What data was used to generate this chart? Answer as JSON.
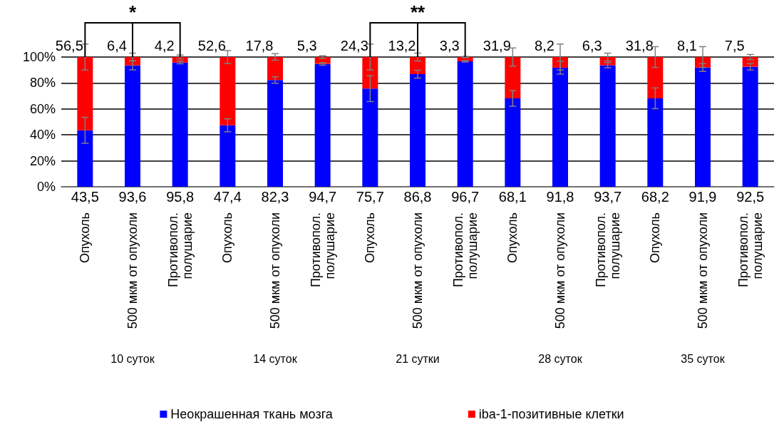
{
  "chart_data": {
    "type": "bar",
    "stacked": true,
    "categories": [
      "Опухоль",
      "500 мкм от опухоли",
      "Противопол. полушарие",
      "Опухоль",
      "500 мкм от опухоли",
      "Противопол. полушарие",
      "Опухоль",
      "500 мкм от опухоли",
      "Противопол. полушарие",
      "Опухоль",
      "500 мкм от опухоли",
      "Противопол. полушарие",
      "Опухоль",
      "500 мкм от опухоли",
      "Противопол. полушарие"
    ],
    "series": [
      {
        "name": "Неокрашенная ткань мозга",
        "color": "#0000ff",
        "values": [
          43.5,
          93.6,
          95.8,
          47.4,
          82.3,
          94.7,
          75.7,
          86.8,
          96.7,
          68.1,
          91.8,
          93.7,
          68.2,
          91.9,
          92.5
        ],
        "errors": [
          10,
          3.5,
          1,
          5,
          2.5,
          1,
          10,
          3,
          0.5,
          6,
          5,
          2,
          8,
          3,
          2.5
        ],
        "value_labels": [
          "43,5",
          "93,6",
          "95,8",
          "47,4",
          "82,3",
          "94,7",
          "75,7",
          "86,8",
          "96,7",
          "68,1",
          "91,8",
          "93,7",
          "68,2",
          "91,9",
          "92,5"
        ]
      },
      {
        "name": "iba-1-позитивные клетки",
        "color": "#ff0000",
        "values": [
          56.5,
          6.4,
          4.2,
          52.6,
          17.8,
          5.3,
          24.3,
          13.2,
          3.3,
          31.9,
          8.2,
          6.3,
          31.8,
          8.1,
          7.5
        ],
        "errors": [
          10,
          3,
          1.5,
          5,
          2.5,
          1,
          10,
          3,
          0.5,
          7,
          10,
          3,
          8,
          8,
          2
        ],
        "value_labels": [
          "56,5",
          "6,4",
          "4,2",
          "52,6",
          "17,8",
          "5,3",
          "24,3",
          "13,2",
          "3,3",
          "31,9",
          "8,2",
          "6,3",
          "31,8",
          "8,1",
          "7,5"
        ]
      }
    ],
    "ylim": [
      0,
      100
    ],
    "yticks": [
      {
        "value": 0,
        "label": "0%"
      },
      {
        "value": 20,
        "label": "20%"
      },
      {
        "value": 40,
        "label": "40%"
      },
      {
        "value": 60,
        "label": "60%"
      },
      {
        "value": 80,
        "label": "80%"
      },
      {
        "value": 100,
        "label": "100%"
      }
    ],
    "grid": "y",
    "legend": "bottom",
    "annotations": [
      "*",
      "**",
      "10 суток",
      "14 суток",
      "21 сутки",
      "28 суток",
      "35 суток"
    ]
  }
}
